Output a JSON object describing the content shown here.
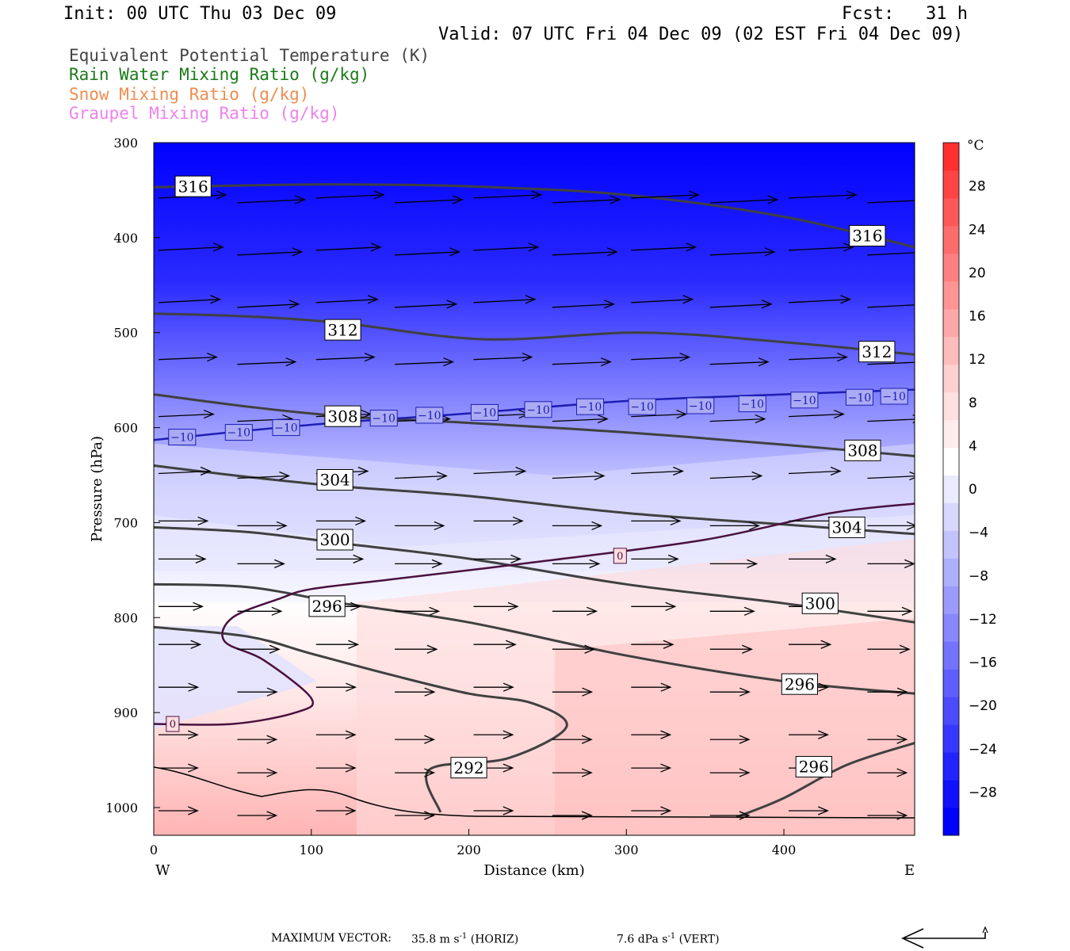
{
  "header": {
    "init": "Init: 00 UTC Thu 03 Dec 09",
    "fcst": "Fcst:   31 h",
    "valid": "Valid: 07 UTC Fri 04 Dec 09 (02 EST Fri 04 Dec 09)"
  },
  "legend": [
    {
      "label": "Equivalent Potential Temperature (K)",
      "color": "#444444"
    },
    {
      "label": "Rain Water Mixing Ratio (g/kg)",
      "color": "#1a7a1a"
    },
    {
      "label": "Snow Mixing Ratio (g/kg)",
      "color": "#f08c50"
    },
    {
      "label": "Graupel Mixing Ratio (g/kg)",
      "color": "#ee82ee"
    }
  ],
  "footer": {
    "max_vector_label": "MAXIMUM VECTOR:",
    "horiz_value": "35.8 m s",
    "horiz_exp": "-1",
    "horiz_tag": "(HORIZ)",
    "vert_value": "7.6 dPa s",
    "vert_exp": "-1",
    "vert_tag": "(VERT)"
  },
  "chart_data": {
    "type": "cross-section",
    "xlabel": "Distance (km)",
    "ylabel": "Pressure (hPa)",
    "xlim": [
      0,
      483
    ],
    "ylim": [
      1030,
      300
    ],
    "x_ticks": [
      0,
      100,
      200,
      300,
      400
    ],
    "y_ticks": [
      300,
      400,
      500,
      600,
      700,
      800,
      900,
      1000
    ],
    "x_end_labels": {
      "left": "W",
      "right": "E"
    },
    "colorbar": {
      "unit": "°C",
      "tick_labels": [
        "28",
        "24",
        "20",
        "16",
        "12",
        "8",
        "4",
        "0",
        "−4",
        "−8",
        "−12",
        "−16",
        "−20",
        "−24",
        "−28"
      ],
      "range": [
        -32,
        32
      ],
      "colors_cold_to_warm": [
        "#0000ff",
        "#1010ff",
        "#2323ff",
        "#3737ff",
        "#4b4bff",
        "#5f5fff",
        "#7373ff",
        "#8787ff",
        "#9b9bff",
        "#afafff",
        "#c3c3ff",
        "#d7d7ff",
        "#ebebff",
        "#ffffff",
        "#ffecec",
        "#ffe0e0",
        "#ffd0d0",
        "#ffbcbc",
        "#ffa8a8",
        "#ff9494",
        "#ff8080",
        "#ff6c6c",
        "#ff5858",
        "#ff4444",
        "#ff3030"
      ]
    },
    "theta_e_contours": [
      {
        "value": 316,
        "label": "316",
        "points": [
          [
            0,
            347
          ],
          [
            60,
            345
          ],
          [
            120,
            344
          ],
          [
            200,
            346
          ],
          [
            300,
            355
          ],
          [
            400,
            378
          ],
          [
            483,
            410
          ]
        ]
      },
      {
        "value": 312,
        "label": "312",
        "points": [
          [
            0,
            480
          ],
          [
            60,
            483
          ],
          [
            120,
            490
          ],
          [
            210,
            507
          ],
          [
            310,
            500
          ],
          [
            400,
            510
          ],
          [
            483,
            523
          ]
        ]
      },
      {
        "value": 308,
        "label": "308",
        "points": [
          [
            0,
            565
          ],
          [
            60,
            578
          ],
          [
            120,
            588
          ],
          [
            200,
            595
          ],
          [
            300,
            605
          ],
          [
            400,
            618
          ],
          [
            483,
            630
          ]
        ]
      },
      {
        "value": 304,
        "label": "304",
        "points": [
          [
            0,
            640
          ],
          [
            60,
            652
          ],
          [
            120,
            662
          ],
          [
            200,
            672
          ],
          [
            300,
            690
          ],
          [
            400,
            702
          ],
          [
            483,
            712
          ]
        ]
      },
      {
        "value": 300,
        "label": "300",
        "points": [
          [
            0,
            705
          ],
          [
            60,
            710
          ],
          [
            120,
            722
          ],
          [
            200,
            738
          ],
          [
            300,
            765
          ],
          [
            400,
            785
          ],
          [
            483,
            805
          ]
        ]
      },
      {
        "value": 296,
        "label": "296",
        "points": [
          [
            0,
            765
          ],
          [
            60,
            768
          ],
          [
            120,
            785
          ],
          [
            200,
            805
          ],
          [
            300,
            840
          ],
          [
            400,
            867
          ],
          [
            483,
            880
          ]
        ]
      },
      {
        "value": 292,
        "label": "292",
        "points": [
          [
            0,
            810
          ],
          [
            60,
            820
          ],
          [
            100,
            838
          ],
          [
            150,
            860
          ],
          [
            200,
            880
          ],
          [
            240,
            890
          ],
          [
            262,
            915
          ],
          [
            225,
            948
          ],
          [
            175,
            960
          ],
          [
            182,
            1005
          ]
        ]
      },
      {
        "value": 296,
        "label": "296",
        "points": [
          [
            370,
            1010
          ],
          [
            400,
            990
          ],
          [
            440,
            955
          ],
          [
            483,
            932
          ]
        ]
      }
    ],
    "isotherms": [
      {
        "value": -10,
        "label": "−10",
        "color": "#1e1eb4",
        "points": [
          [
            0,
            613
          ],
          [
            100,
            597
          ],
          [
            200,
            585
          ],
          [
            300,
            572
          ],
          [
            400,
            565
          ],
          [
            483,
            560
          ]
        ]
      },
      {
        "value": 0,
        "label": "0",
        "color": "#4a1040",
        "points": [
          [
            0,
            912
          ],
          [
            50,
            912
          ],
          [
            90,
            900
          ],
          [
            100,
            885
          ],
          [
            70,
            845
          ],
          [
            45,
            825
          ],
          [
            50,
            800
          ],
          [
            80,
            780
          ],
          [
            100,
            770
          ],
          [
            150,
            760
          ],
          [
            250,
            740
          ],
          [
            350,
            718
          ],
          [
            430,
            690
          ],
          [
            483,
            680
          ]
        ]
      }
    ],
    "wind_vectors": "uniform westerly flow, strongest aloft (~35.8 m/s max)",
    "contour_label_values": [
      "316",
      "316",
      "312",
      "312",
      "308",
      "308",
      "304",
      "304",
      "300",
      "300",
      "296",
      "296",
      "296",
      "292"
    ],
    "isotherm_label_values": [
      "−10",
      "0"
    ]
  }
}
